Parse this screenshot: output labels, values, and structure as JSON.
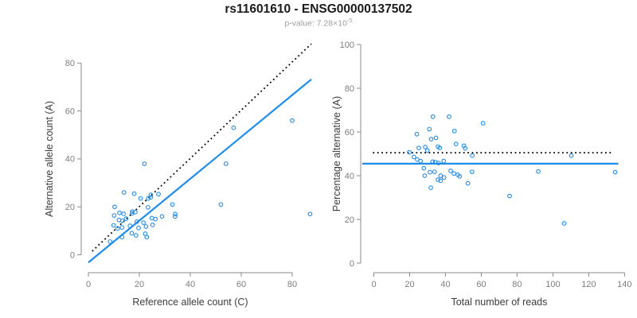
{
  "header": {
    "title": "rs11601610 - ENSG00000137502",
    "p_value_base": "p-value: 7.28×10",
    "p_value_exponent": "-5"
  },
  "colors": {
    "accent_blue": "#1f8ceb",
    "identity_black": "#000000",
    "axis": "#8a8a8a",
    "tick_label": "#7e7e7e",
    "axis_title": "#3c3c3c",
    "title": "#1a1a1a",
    "subtitle": "#9f9f9f"
  },
  "chart_data": [
    {
      "type": "scatter",
      "name": "ref-vs-alt-count-plot",
      "xlabel": "Reference allele count (C)",
      "ylabel": "Alternative allele count (A)",
      "xlim": [
        0,
        80
      ],
      "ylim": [
        0,
        80
      ],
      "xticks": [
        0,
        20,
        40,
        60,
        80
      ],
      "yticks": [
        0,
        20,
        40,
        60,
        80
      ],
      "grid": false,
      "legend": "none",
      "points": [
        [
          57,
          53
        ],
        [
          80,
          56
        ],
        [
          22,
          38
        ],
        [
          54,
          38
        ],
        [
          87,
          17
        ],
        [
          52,
          21
        ],
        [
          33,
          21
        ],
        [
          34,
          16
        ],
        [
          14,
          26
        ],
        [
          18,
          25.5
        ],
        [
          20.5,
          23.5
        ],
        [
          23.5,
          23.5
        ],
        [
          24.5,
          25
        ],
        [
          24.5,
          24
        ],
        [
          27.5,
          25.3
        ],
        [
          10.3,
          20
        ],
        [
          23.4,
          19.8
        ],
        [
          12.2,
          17.5
        ],
        [
          13.8,
          17.1
        ],
        [
          17.2,
          18
        ],
        [
          17.2,
          17.3
        ],
        [
          18.4,
          17.8
        ],
        [
          14.8,
          15.1
        ],
        [
          10.1,
          16.4
        ],
        [
          12,
          14.5
        ],
        [
          13.4,
          14.2
        ],
        [
          19,
          13.8
        ],
        [
          21.6,
          13.4
        ],
        [
          24.9,
          15.3
        ],
        [
          26.3,
          14.9
        ],
        [
          28.9,
          16
        ],
        [
          34.1,
          17
        ],
        [
          9.9,
          12.3
        ],
        [
          11.5,
          11
        ],
        [
          13.2,
          11.4
        ],
        [
          16.3,
          12.1
        ],
        [
          19.7,
          11.2
        ],
        [
          22.6,
          11.8
        ],
        [
          25.2,
          12.5
        ],
        [
          17,
          9
        ],
        [
          18.7,
          8.1
        ],
        [
          22.3,
          8.8
        ],
        [
          22.9,
          7.4
        ],
        [
          13.2,
          7.4
        ],
        [
          8.5,
          5.5
        ]
      ],
      "lines": [
        {
          "name": "identity",
          "style": "dotted",
          "color": "#000000",
          "from": [
            1.5,
            1.5
          ],
          "to": [
            87.5,
            88
          ]
        },
        {
          "name": "regression",
          "style": "solid",
          "color": "#1f8ceb",
          "from": [
            0,
            -3.2
          ],
          "to": [
            87.5,
            73.2
          ]
        }
      ]
    },
    {
      "type": "scatter",
      "name": "reads-vs-percentage-plot",
      "xlabel": "Total number of reads",
      "ylabel": "Percentage alternative (A)",
      "xlim": [
        0,
        140
      ],
      "ylim": [
        0,
        100
      ],
      "xticks": [
        0,
        20,
        40,
        60,
        80,
        100,
        120,
        140
      ],
      "yticks": [
        0,
        20,
        40,
        60,
        80,
        100
      ],
      "grid": false,
      "legend": "none",
      "points": [
        [
          33,
          67
        ],
        [
          42,
          67
        ],
        [
          61,
          64
        ],
        [
          31,
          61.3
        ],
        [
          24,
          59
        ],
        [
          45,
          60.4
        ],
        [
          32,
          56.7
        ],
        [
          34.7,
          57.3
        ],
        [
          45.9,
          54.5
        ],
        [
          50.3,
          53.7
        ],
        [
          51,
          52.5
        ],
        [
          25.1,
          52.7
        ],
        [
          28.7,
          53.1
        ],
        [
          29.9,
          51.5
        ],
        [
          19.8,
          50.7
        ],
        [
          35.8,
          53.3
        ],
        [
          36.8,
          52.7
        ],
        [
          22.4,
          48.6
        ],
        [
          24.2,
          47.4
        ],
        [
          26.1,
          46.7
        ],
        [
          32.8,
          46.4
        ],
        [
          34.3,
          46.2
        ],
        [
          36.1,
          45.8
        ],
        [
          39,
          46.7
        ],
        [
          27.9,
          43.4
        ],
        [
          31.3,
          41.6
        ],
        [
          33.9,
          41.8
        ],
        [
          28.4,
          40
        ],
        [
          37.3,
          40
        ],
        [
          39.2,
          39.2
        ],
        [
          42.9,
          42.2
        ],
        [
          44.7,
          41
        ],
        [
          46.9,
          40.4
        ],
        [
          47.9,
          39.7
        ],
        [
          35.8,
          38.2
        ],
        [
          37.3,
          37.7
        ],
        [
          54.8,
          41.8
        ],
        [
          52.5,
          36.5
        ],
        [
          31.8,
          34.5
        ],
        [
          55,
          49.2
        ],
        [
          75.8,
          30.7
        ],
        [
          91.8,
          41.9
        ],
        [
          106.3,
          18.2
        ],
        [
          110.3,
          49.2
        ],
        [
          134.8,
          41.6
        ]
      ],
      "lines": [
        {
          "name": "expected-50pct",
          "style": "dotted",
          "color": "#000000",
          "from": [
            -0.5,
            50.5
          ],
          "to": [
            133,
            50.5
          ]
        },
        {
          "name": "observed-mean",
          "style": "solid",
          "color": "#1f8ceb",
          "from": [
            -6.5,
            45.5
          ],
          "to": [
            136.5,
            45.5
          ]
        }
      ]
    }
  ]
}
